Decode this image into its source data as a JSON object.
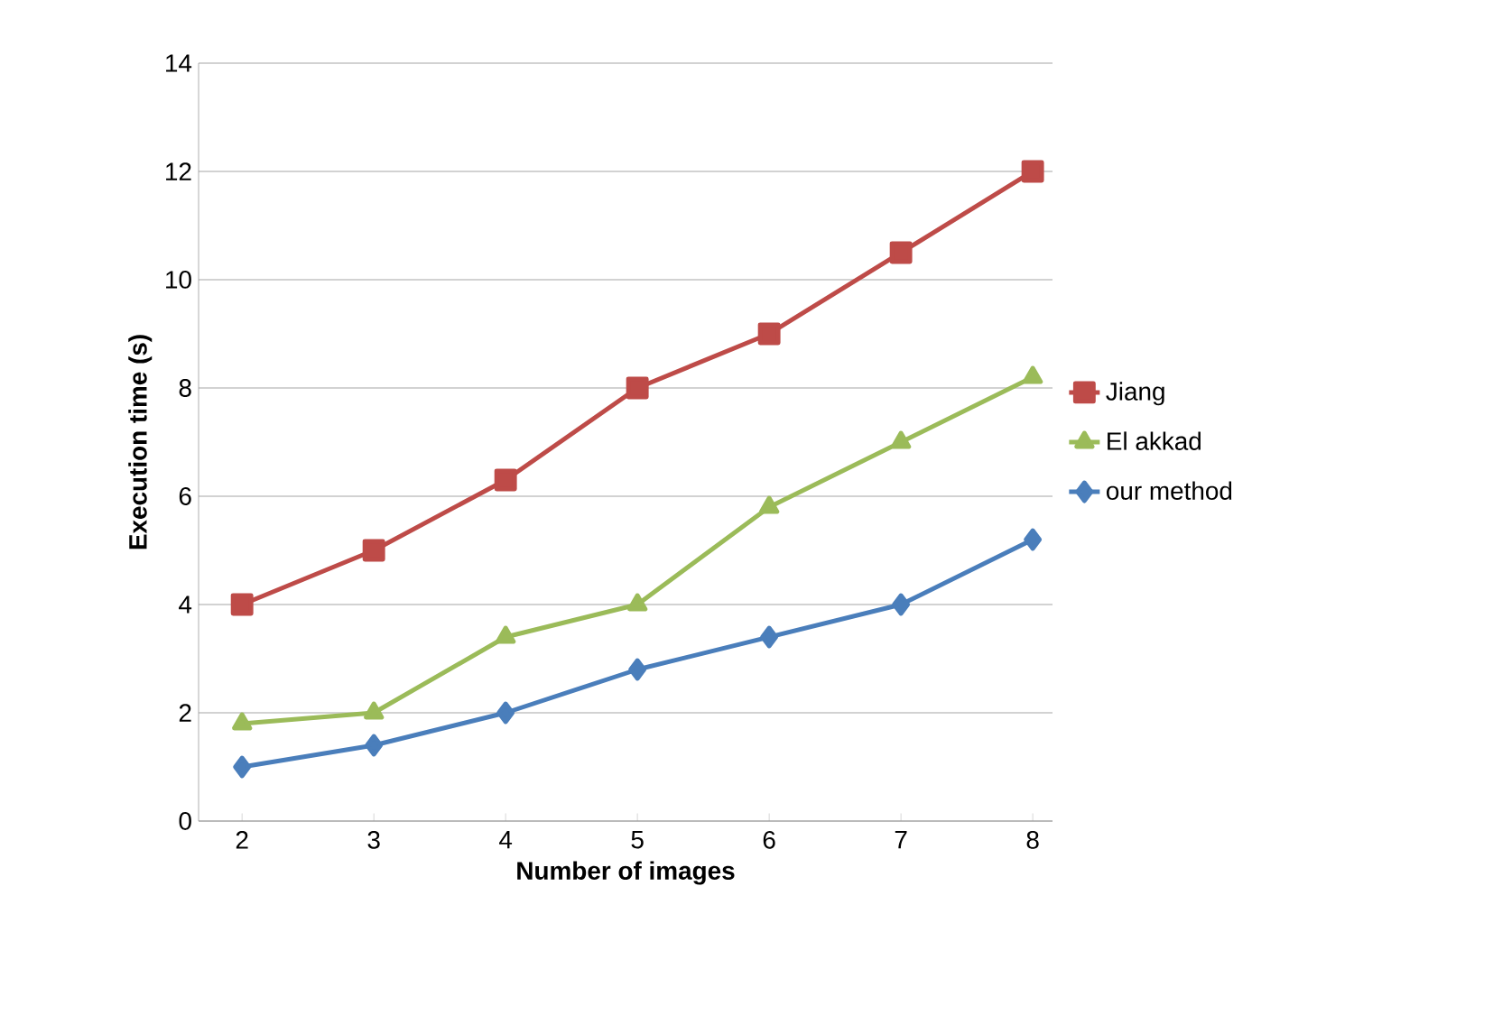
{
  "chart_data": {
    "type": "line",
    "xlabel": "Number of images",
    "ylabel": "Execution time (s)",
    "categories": [
      "2",
      "3",
      "4",
      "5",
      "6",
      "7",
      "8"
    ],
    "series": [
      {
        "name": "Jiang",
        "color": "#be4b48",
        "marker": "square",
        "values": [
          4,
          5,
          6.3,
          8,
          9,
          10.5,
          12
        ]
      },
      {
        "name": "El akkad",
        "color": "#9bbb59",
        "marker": "triangle",
        "values": [
          1.8,
          2,
          3.4,
          4,
          5.8,
          7,
          8.2
        ]
      },
      {
        "name": "our method",
        "color": "#4a7ebb",
        "marker": "diamond",
        "values": [
          1,
          1.4,
          2,
          2.8,
          3.4,
          4,
          5.2
        ]
      }
    ],
    "ylim": [
      0,
      14
    ],
    "yticks": [
      0,
      2,
      4,
      6,
      8,
      10,
      12,
      14
    ],
    "grid": "y",
    "legend": "right",
    "line_style": "solid"
  }
}
